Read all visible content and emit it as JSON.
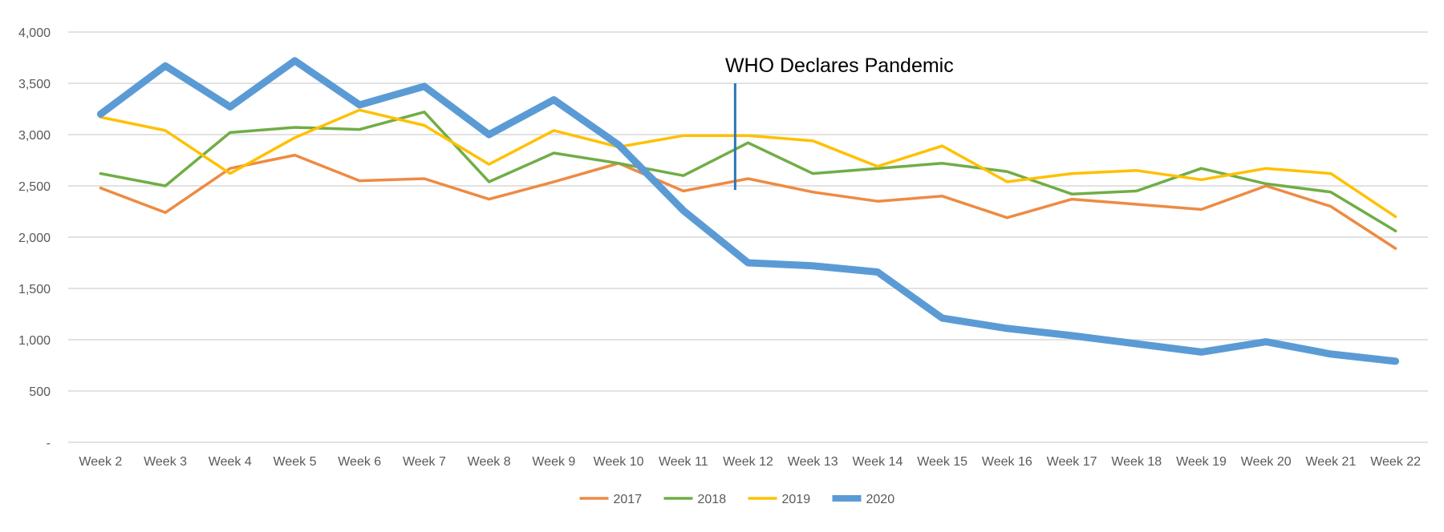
{
  "chart_data": {
    "type": "line",
    "title": "",
    "xlabel": "",
    "ylabel": "",
    "categories": [
      "Week 2",
      "Week 3",
      "Week 4",
      "Week 5",
      "Week 6",
      "Week 7",
      "Week 8",
      "Week 9",
      "Week 10",
      "Week 11",
      "Week 12",
      "Week 13",
      "Week 14",
      "Week 15",
      "Week 16",
      "Week 17",
      "Week 18",
      "Week 19",
      "Week 20",
      "Week 21",
      "Week 22"
    ],
    "ylim": [
      0,
      4000
    ],
    "y_ticks": [
      0,
      500,
      1000,
      1500,
      2000,
      2500,
      3000,
      3500,
      4000
    ],
    "y_tick_labels": [
      "-",
      "500",
      "1,000",
      "1,500",
      "2,000",
      "2,500",
      "3,000",
      "3,500",
      "4,000"
    ],
    "grid": true,
    "legend_position": "bottom",
    "series": [
      {
        "name": "2017",
        "color": "#ed8b43",
        "width": "normal",
        "values": [
          2480,
          2240,
          2670,
          2800,
          2550,
          2570,
          2370,
          2540,
          2720,
          2450,
          2570,
          2440,
          2350,
          2400,
          2190,
          2370,
          2320,
          2270,
          2500,
          2300,
          1890
        ]
      },
      {
        "name": "2018",
        "color": "#70ad47",
        "width": "normal",
        "values": [
          2620,
          2500,
          3020,
          3070,
          3050,
          3220,
          2540,
          2820,
          2720,
          2600,
          2920,
          2620,
          2670,
          2720,
          2640,
          2420,
          2450,
          2670,
          2520,
          2440,
          2060
        ]
      },
      {
        "name": "2019",
        "color": "#ffc000",
        "width": "normal",
        "values": [
          3170,
          3040,
          2620,
          2970,
          3240,
          3090,
          2710,
          3040,
          2880,
          2990,
          2990,
          2940,
          2690,
          2890,
          2540,
          2620,
          2650,
          2560,
          2670,
          2620,
          2200
        ]
      },
      {
        "name": "2020",
        "color": "#5b9bd5",
        "width": "thick",
        "values": [
          3200,
          3670,
          3270,
          3720,
          3290,
          3470,
          3000,
          3340,
          2900,
          2260,
          1750,
          1720,
          1660,
          1210,
          1110,
          1040,
          960,
          880,
          980,
          860,
          790
        ]
      }
    ],
    "annotations": [
      {
        "text": "WHO Declares Pandemic",
        "x": 9.8,
        "y_from": 2460,
        "y_to": 3500,
        "color": "#2e75b6"
      }
    ]
  }
}
